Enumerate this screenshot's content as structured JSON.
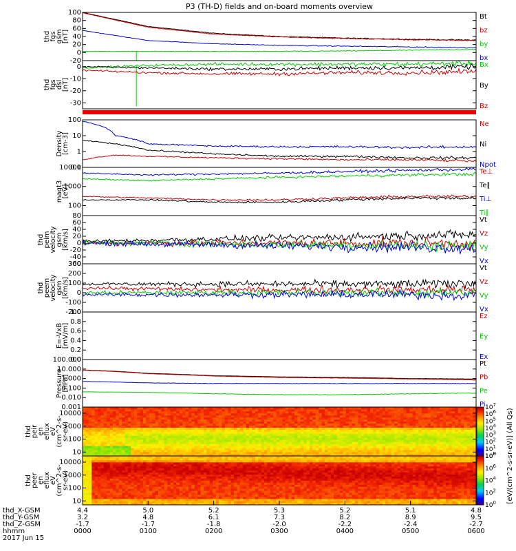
{
  "title": "P3 (TH-D) fields and on-board moments overview",
  "date_label": "2017 Jun 15",
  "colors": {
    "black": "#000000",
    "red": "#cc0000",
    "green": "#00cc00",
    "blue": "#0000dd",
    "divider": "#ee0000"
  },
  "chart_data": [
    {
      "type": "line",
      "name": "fgs-gsm",
      "ylabel_lines": [
        "thd",
        "fgs",
        "gsm",
        "[nT]"
      ],
      "ylim": [
        -20,
        100
      ],
      "ticks": [
        -20,
        0,
        20,
        40,
        60,
        80,
        100
      ],
      "tick_labels": [
        "-20",
        "0",
        "20",
        "40",
        "60",
        "80",
        "100"
      ],
      "x": [
        0,
        1,
        2,
        3,
        4,
        5,
        6
      ],
      "series": [
        {
          "name": "Bt",
          "color": "black",
          "values": [
            100,
            65,
            48,
            40,
            36,
            33,
            31
          ],
          "noise": 1
        },
        {
          "name": "bz",
          "color": "red",
          "values": [
            99,
            63,
            46,
            39,
            35,
            32,
            30
          ],
          "noise": 1
        },
        {
          "name": "by",
          "color": "green",
          "values": [
            3,
            3,
            3,
            3,
            4,
            6,
            8
          ],
          "noise": 1,
          "spike": [
            0.82,
            -20
          ]
        },
        {
          "name": "bx",
          "color": "blue",
          "values": [
            55,
            30,
            22,
            18,
            16,
            14,
            12
          ],
          "noise": 1
        }
      ]
    },
    {
      "type": "line",
      "name": "fgs-dsl",
      "ylabel_lines": [
        "thd",
        "fgs",
        "dsl",
        "[nT]"
      ],
      "ylim": [
        -35,
        5
      ],
      "ticks": [
        -30,
        -20,
        -10,
        0
      ],
      "tick_labels": [
        "-30",
        "-20",
        "-10",
        "0"
      ],
      "x": [
        0,
        1,
        2,
        3,
        4,
        5,
        6
      ],
      "series": [
        {
          "name": "Bx",
          "color": "green",
          "values": [
            -1,
            1,
            2,
            2,
            2,
            2,
            3
          ],
          "noise": 1.5,
          "spike": [
            0.82,
            -33
          ]
        },
        {
          "name": "By",
          "color": "black",
          "values": [
            0,
            -1,
            -2,
            -2,
            -1,
            -1,
            0
          ],
          "noise": 1.5
        },
        {
          "name": "Bz",
          "color": "red",
          "values": [
            -3,
            -5,
            -6,
            -6,
            -5,
            -5,
            -4
          ],
          "noise": 1.5
        }
      ]
    },
    {
      "type": "line",
      "name": "density",
      "scale": "log",
      "ylabel_lines": [
        "Density",
        "[cm-3]"
      ],
      "ylim": [
        0.1,
        100
      ],
      "ticks": [
        0.1,
        1,
        10,
        100
      ],
      "tick_labels": [
        "0.1",
        "1",
        "10",
        "100"
      ],
      "x": [
        0,
        0.5,
        1,
        2,
        3,
        4,
        5,
        6
      ],
      "series": [
        {
          "name": "Ne",
          "color": "red",
          "values": [
            0.3,
            0.6,
            0.5,
            0.4,
            0.35,
            0.3,
            0.3,
            0.25
          ],
          "noise": 0.05
        },
        {
          "name": "Ni",
          "color": "black",
          "values": [
            5,
            3,
            1.2,
            0.7,
            0.5,
            0.5,
            0.4,
            0.4
          ],
          "noise": 0.05
        },
        {
          "name": "Npot",
          "color": "blue",
          "values": [
            80,
            10,
            3,
            2.2,
            2,
            2,
            1.8,
            2
          ],
          "noise": 0.05
        }
      ]
    },
    {
      "type": "line",
      "name": "temperature",
      "scale": "log",
      "ylabel_lines": [
        "magt3",
        "[eV]"
      ],
      "ylim": [
        30,
        10000
      ],
      "ticks": [
        100,
        1000,
        10000
      ],
      "tick_labels": [
        "100",
        "1000",
        "10000"
      ],
      "x": [
        0,
        1,
        2,
        3,
        4,
        5,
        6
      ],
      "series": [
        {
          "name": "Te⊥",
          "color": "red",
          "values": [
            300,
            250,
            200,
            200,
            250,
            300,
            300
          ],
          "noise": 0.05
        },
        {
          "name": "Te∥",
          "color": "black",
          "values": [
            200,
            200,
            150,
            150,
            200,
            250,
            250
          ],
          "noise": 0.05
        },
        {
          "name": "Ti⊥",
          "color": "blue",
          "values": [
            5000,
            4000,
            4500,
            5000,
            6000,
            7000,
            8000
          ],
          "noise": 0.05
        },
        {
          "name": "Ti∥",
          "color": "green",
          "values": [
            2500,
            2000,
            2500,
            3000,
            3500,
            4000,
            4500
          ],
          "noise": 0.05
        }
      ]
    },
    {
      "type": "line",
      "name": "peim-velocity",
      "ylabel_lines": [
        "thd",
        "peim",
        "velocity",
        "gsm",
        "[km/s]"
      ],
      "ylim": [
        -60,
        80
      ],
      "ticks": [
        -60,
        -40,
        -20,
        0,
        20,
        40,
        60,
        80
      ],
      "tick_labels": [
        "-60",
        "-40",
        "-20",
        "0",
        "20",
        "40",
        "60",
        "80"
      ],
      "x": [
        0,
        1,
        2,
        3,
        4,
        5,
        6
      ],
      "series": [
        {
          "name": "Vt",
          "color": "black",
          "values": [
            5,
            8,
            12,
            15,
            18,
            22,
            25
          ],
          "noise": 10
        },
        {
          "name": "Vz",
          "color": "red",
          "values": [
            0,
            0,
            0,
            0,
            0,
            0,
            0
          ],
          "noise": 12
        },
        {
          "name": "Vy",
          "color": "green",
          "values": [
            0,
            0,
            -2,
            -5,
            -5,
            -8,
            -8
          ],
          "noise": 12
        },
        {
          "name": "Vx",
          "color": "blue",
          "values": [
            0,
            -2,
            -5,
            -8,
            -10,
            -12,
            -15
          ],
          "noise": 12
        }
      ]
    },
    {
      "type": "line",
      "name": "peem-velocity",
      "ylabel_lines": [
        "thd",
        "peem",
        "velocity",
        "gsm",
        "[km/s]"
      ],
      "ylim": [
        -200,
        300
      ],
      "ticks": [
        -200,
        -100,
        0,
        100,
        200,
        300
      ],
      "tick_labels": [
        "-200",
        "-100",
        "0",
        "100",
        "200",
        "300"
      ],
      "x": [
        0,
        1,
        2,
        3,
        4,
        5,
        6
      ],
      "series": [
        {
          "name": "Vt",
          "color": "black",
          "values": [
            90,
            90,
            90,
            90,
            90,
            90,
            100
          ],
          "noise": 35
        },
        {
          "name": "Vz",
          "color": "red",
          "values": [
            50,
            40,
            30,
            30,
            30,
            30,
            30
          ],
          "noise": 35
        },
        {
          "name": "Vy",
          "color": "green",
          "values": [
            0,
            0,
            0,
            0,
            0,
            0,
            0
          ],
          "noise": 35
        },
        {
          "name": "Vx",
          "color": "blue",
          "values": [
            -20,
            -20,
            -20,
            -20,
            -20,
            -20,
            -30
          ],
          "noise": 35
        }
      ]
    },
    {
      "type": "line",
      "name": "efield",
      "ylabel_lines": [
        "E=-VxB",
        "[mV/m]"
      ],
      "ylim": [
        0,
        1
      ],
      "ticks": [
        0,
        0.2,
        0.4,
        0.6,
        0.8,
        1.0
      ],
      "tick_labels": [
        "0.0",
        "0.2",
        "0.4",
        "0.6",
        "0.8",
        "1.0"
      ],
      "x": [],
      "series": [
        {
          "name": "Ez",
          "color": "red",
          "values": []
        },
        {
          "name": "Ey",
          "color": "green",
          "values": []
        },
        {
          "name": "Ex",
          "color": "blue",
          "values": []
        }
      ]
    },
    {
      "type": "line",
      "name": "pressure",
      "scale": "log",
      "ylabel_lines": [
        "Pressure",
        "[nPa]"
      ],
      "ylim": [
        0.001,
        100
      ],
      "ticks": [
        0.001,
        0.01,
        0.1,
        1,
        10,
        100
      ],
      "tick_labels": [
        "0.001",
        "0.010",
        "0.100",
        "1.000",
        "10.000",
        "100.000"
      ],
      "x": [
        0,
        1,
        2,
        3,
        4,
        5,
        6
      ],
      "series": [
        {
          "name": "Pt",
          "color": "black",
          "values": [
            8,
            3.5,
            2,
            1.5,
            1.3,
            1.0,
            0.9
          ],
          "noise": 0.01
        },
        {
          "name": "Pb",
          "color": "red",
          "values": [
            7.5,
            3.2,
            1.8,
            1.3,
            1.1,
            0.9,
            0.7
          ],
          "noise": 0.01
        },
        {
          "name": "Pe",
          "color": "green",
          "values": [
            0.04,
            0.035,
            0.025,
            0.02,
            0.02,
            0.025,
            0.03
          ],
          "noise": 0.02
        },
        {
          "name": "Pi",
          "color": "blue",
          "values": [
            0.5,
            0.35,
            0.3,
            0.3,
            0.3,
            0.3,
            0.3
          ],
          "noise": 0.02
        }
      ]
    },
    {
      "type": "heatmap",
      "name": "peir-spectrogram",
      "ylabel_lines": [
        "thd",
        "peir",
        "en",
        "eflux",
        "eV",
        "(cm^2-s-",
        "sr-eV)"
      ],
      "ylim": [
        5,
        30000
      ],
      "ticks": [
        10,
        100,
        1000,
        10000
      ],
      "tick_labels": [
        "10",
        "100",
        "1000",
        "10000"
      ],
      "colorbar": {
        "label": "[eV/(cm^2-s-sr-eV)] (All Qs)",
        "range_exp": [
          0,
          7
        ],
        "ticks": [
          "10^0",
          "10^1",
          "10^2",
          "10^3",
          "10^4",
          "10^5",
          "10^6",
          "10^7"
        ]
      }
    },
    {
      "type": "heatmap",
      "name": "peer-spectrogram",
      "ylabel_lines": [
        "thd",
        "peer",
        "en",
        "eflux",
        "eV",
        "(cm^2-s-",
        "sr-eV)"
      ],
      "ylim": [
        5,
        30000
      ],
      "ticks": [
        10,
        100,
        1000,
        10000
      ],
      "tick_labels": [
        "10",
        "100",
        "1000",
        "10000"
      ],
      "colorbar": {
        "label": "[eV/(cm^2-s-sr-eV)] (All Qs)",
        "range_exp": [
          0,
          9
        ],
        "ticks": [
          "10^0",
          "10^2",
          "10^4",
          "10^6",
          "10^8"
        ]
      }
    }
  ],
  "x_axis": {
    "row_labels": [
      "thd_X-GSM",
      "thd_Y-GSM",
      "thd_Z-GSM",
      "hhmm"
    ],
    "columns": [
      {
        "x": 0,
        "X": "4.4",
        "Y": "3.2",
        "Z": "-1.7",
        "t": "0000"
      },
      {
        "x": 1,
        "X": "5.0",
        "Y": "4.8",
        "Z": "-1.7",
        "t": "0100"
      },
      {
        "x": 2,
        "X": "5.2",
        "Y": "6.1",
        "Z": "-1.8",
        "t": "0200"
      },
      {
        "x": 3,
        "X": "5.3",
        "Y": "7.3",
        "Z": "-2.0",
        "t": "0300"
      },
      {
        "x": 4,
        "X": "5.2",
        "Y": "8.2",
        "Z": "-2.2",
        "t": "0400"
      },
      {
        "x": 5,
        "X": "5.1",
        "Y": "8.9",
        "Z": "-2.4",
        "t": "0500"
      },
      {
        "x": 6,
        "X": "4.8",
        "Y": "9.5",
        "Z": "-2.7",
        "t": "0600"
      }
    ]
  }
}
